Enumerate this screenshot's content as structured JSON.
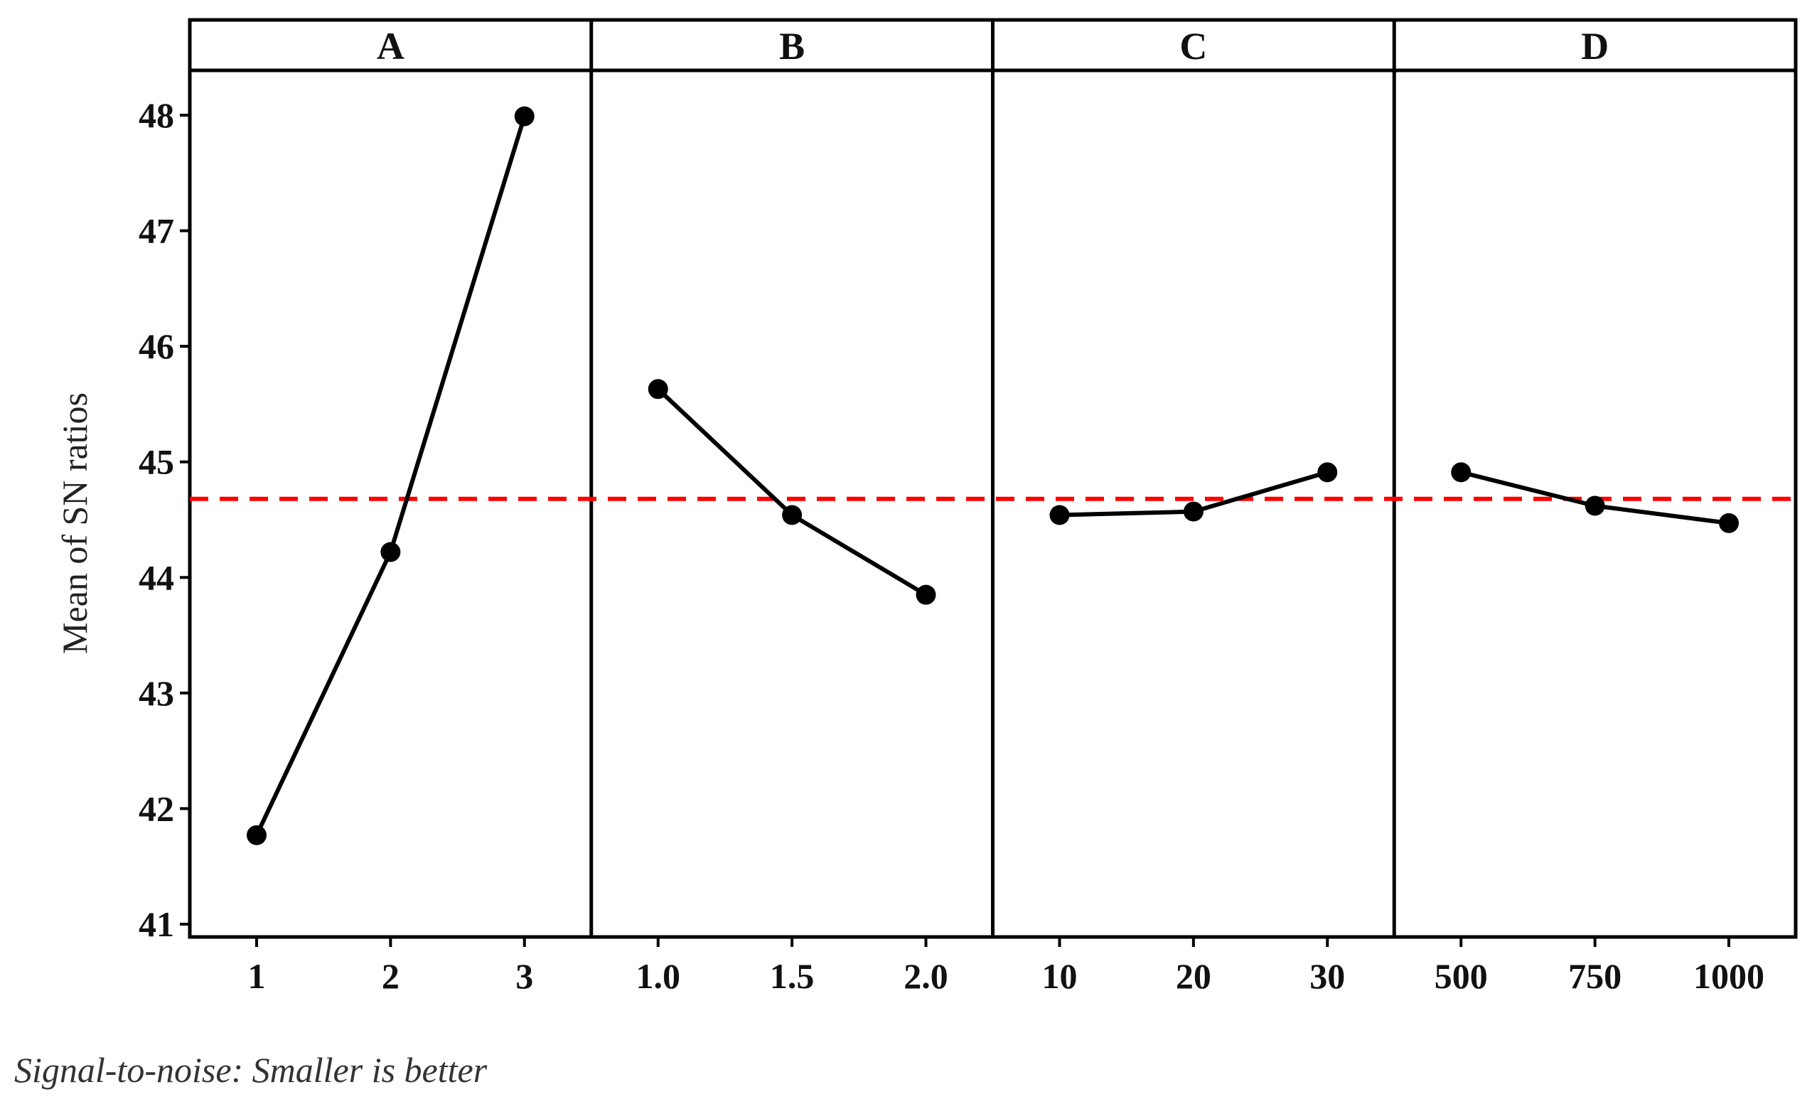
{
  "chart_data": {
    "type": "line",
    "title": "",
    "ylabel": "Mean of SN ratios",
    "ylim": [
      41,
      48
    ],
    "yticks": [
      41,
      42,
      43,
      44,
      45,
      46,
      47,
      48
    ],
    "ytick_labels": [
      "41",
      "42",
      "43",
      "44",
      "45",
      "46",
      "47",
      "48"
    ],
    "reference_line": {
      "value": 44.68,
      "color": "#ff0000",
      "style": "dashed"
    },
    "grid": false,
    "panels": [
      {
        "name": "A",
        "levels": [
          "1",
          "2",
          "3"
        ],
        "values": [
          41.77,
          44.22,
          47.99
        ]
      },
      {
        "name": "B",
        "levels": [
          "1.0",
          "1.5",
          "2.0"
        ],
        "values": [
          45.63,
          44.54,
          43.85
        ]
      },
      {
        "name": "C",
        "levels": [
          "10",
          "20",
          "30"
        ],
        "values": [
          44.54,
          44.57,
          44.91
        ]
      },
      {
        "name": "D",
        "levels": [
          "500",
          "750",
          "1000"
        ],
        "values": [
          44.91,
          44.62,
          44.47
        ]
      }
    ],
    "line_color": "#000000"
  },
  "footnote": "Signal-to-noise: Smaller is better"
}
